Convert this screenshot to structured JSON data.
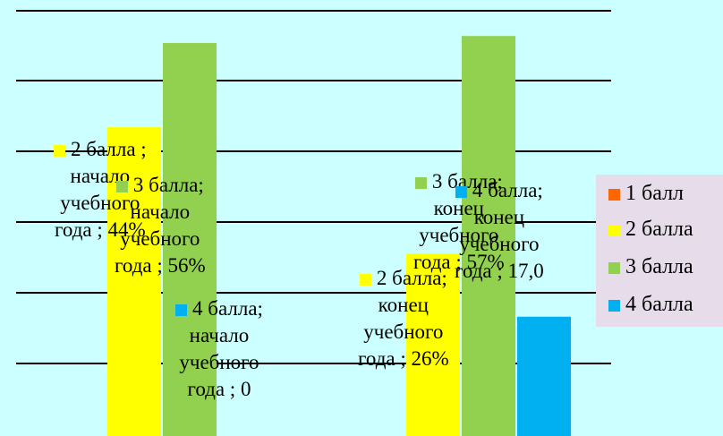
{
  "chart_data": {
    "type": "bar",
    "categories": [
      "начало учебного года",
      "конец учебного года"
    ],
    "series": [
      {
        "name": "1 балл",
        "color": "#ff6600",
        "values": [
          0,
          0
        ]
      },
      {
        "name": "2 балла",
        "color": "#ffff00",
        "values": [
          44,
          26
        ]
      },
      {
        "name": "3 балла",
        "color": "#92d050",
        "values": [
          56,
          57
        ]
      },
      {
        "name": "4 балла",
        "color": "#00b0f0",
        "values": [
          0,
          17
        ]
      }
    ],
    "ylim": [
      0,
      60
    ],
    "grid": true,
    "legend_position": "right",
    "data_labels": [
      {
        "series": "2 балла",
        "category": "начало учебного года",
        "lines": [
          "2 балла ;",
          "начало",
          "учебного",
          "года ; 44%"
        ]
      },
      {
        "series": "3 балла",
        "category": "начало учебного года",
        "lines": [
          "3 балла;",
          "начало",
          "учебного",
          "года ; 56%"
        ]
      },
      {
        "series": "4 балла",
        "category": "начало учебного года",
        "lines": [
          "4 балла;",
          "начало",
          "учебного",
          "года ; 0"
        ]
      },
      {
        "series": "3 балла",
        "category": "конец учебного года",
        "lines": [
          "3 балла;",
          "конец",
          "учебного",
          "года ; 57%"
        ]
      },
      {
        "series": "4 балла",
        "category": "конец учебного года",
        "lines": [
          "4 балла;",
          "конец",
          "учебного",
          "года ; 17,0"
        ]
      },
      {
        "series": "2 балла",
        "category": "конец учебного года",
        "lines": [
          "2 балла;",
          "конец",
          "учебного",
          "года ; 26%"
        ]
      }
    ]
  }
}
